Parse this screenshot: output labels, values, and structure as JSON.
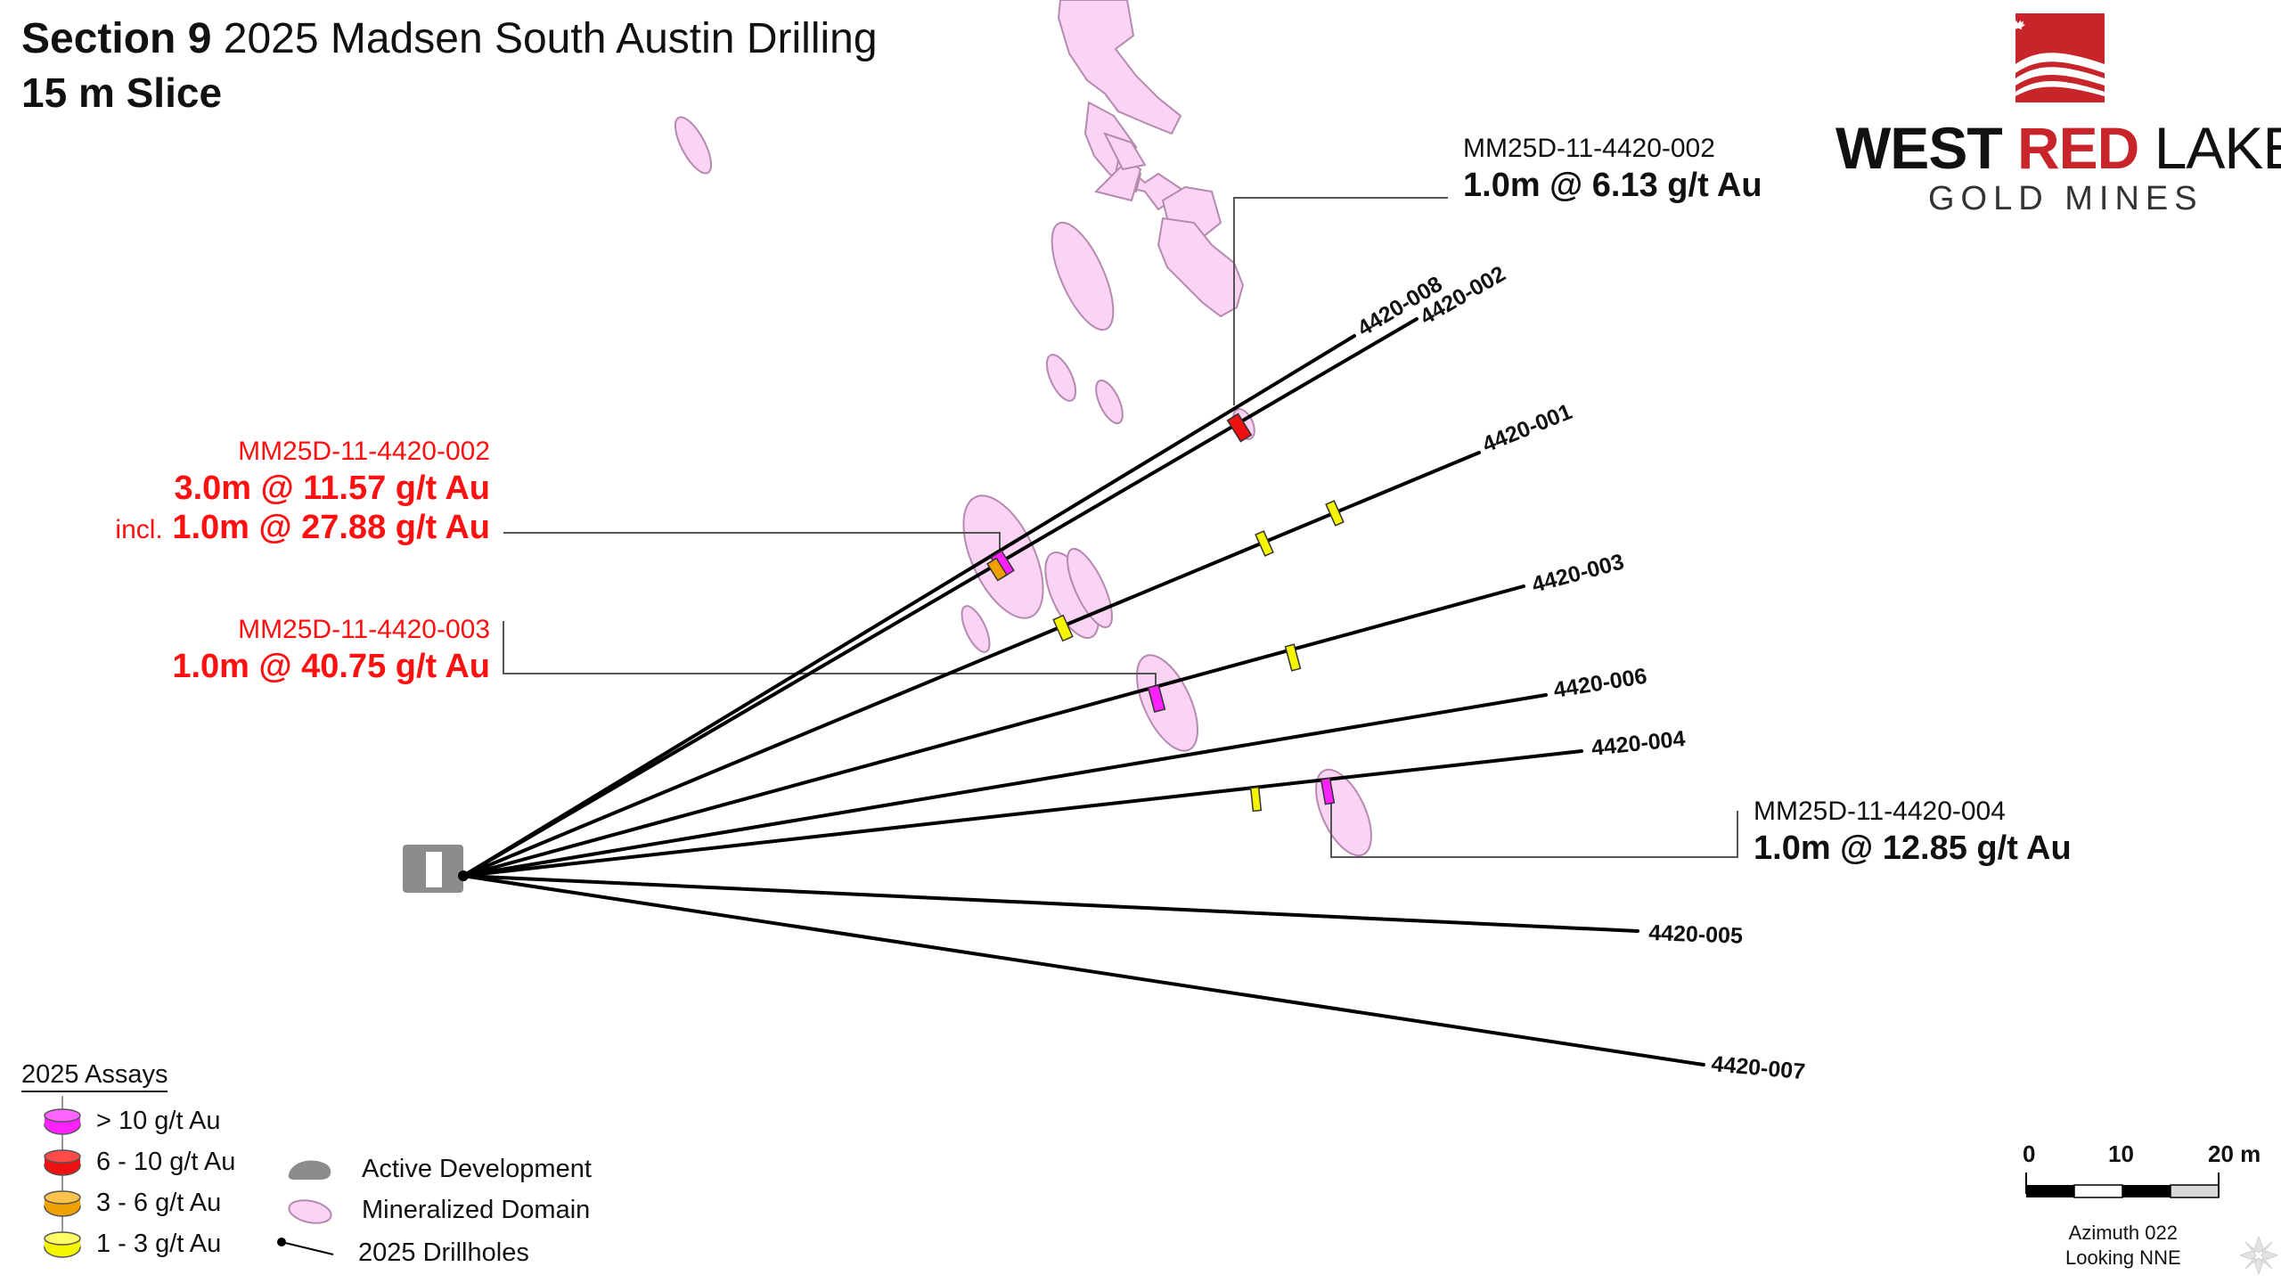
{
  "header": {
    "title_bold": "Section 9",
    "title_rest": "2025 Madsen South Austin Drilling",
    "subtitle": "15 m Slice"
  },
  "logo": {
    "word_west": "WEST",
    "word_red": "RED",
    "word_lake": "LAKE",
    "tagline": "GOLD MINES",
    "brand_red": "#c8252b"
  },
  "drillholes": [
    {
      "label": "4420-008"
    },
    {
      "label": "4420-002"
    },
    {
      "label": "4420-001"
    },
    {
      "label": "4420-003"
    },
    {
      "label": "4420-006"
    },
    {
      "label": "4420-004"
    },
    {
      "label": "4420-005"
    },
    {
      "label": "4420-007"
    }
  ],
  "callouts": [
    {
      "hole": "MM25D-11-4420-002",
      "value": "1.0m @ 6.13 g/t Au",
      "color": "black"
    },
    {
      "hole": "MM25D-11-4420-002",
      "value": "3.0m @ 11.57 g/t Au",
      "incl_prefix": "incl.",
      "incl_value": "1.0m @ 27.88 g/t Au",
      "color": "red"
    },
    {
      "hole": "MM25D-11-4420-003",
      "value": "1.0m @ 40.75 g/t Au",
      "color": "red"
    },
    {
      "hole": "MM25D-11-4420-004",
      "value": "1.0m @ 12.85 g/t Au",
      "color": "black"
    }
  ],
  "legend": {
    "title": "2025 Assays",
    "grades": [
      {
        "label": "> 10 g/t Au",
        "color": "#ff22ff"
      },
      {
        "label": "6 - 10 g/t Au",
        "color": "#ee1111"
      },
      {
        "label": "3 - 6 g/t Au",
        "color": "#f0a000"
      },
      {
        "label": "1 - 3 g/t Au",
        "color": "#f5f500"
      }
    ],
    "symbols": [
      {
        "label": "Active Development",
        "color": "#8c8c8c"
      },
      {
        "label": "Mineralized Domain",
        "color": "#fbd3f3"
      },
      {
        "label": "2025 Drillholes"
      }
    ]
  },
  "scale_bar": {
    "labels": [
      "0",
      "10",
      "20 m"
    ]
  },
  "orientation": {
    "azimuth": "Azimuth 022",
    "looking": "Looking NNE"
  },
  "colors": {
    "domain_fill": "#fbd3f3",
    "domain_stroke": "#b58ab0",
    "development": "#8c8c8c",
    "drillhole": "#000000",
    "callout_red": "#ff1010"
  }
}
